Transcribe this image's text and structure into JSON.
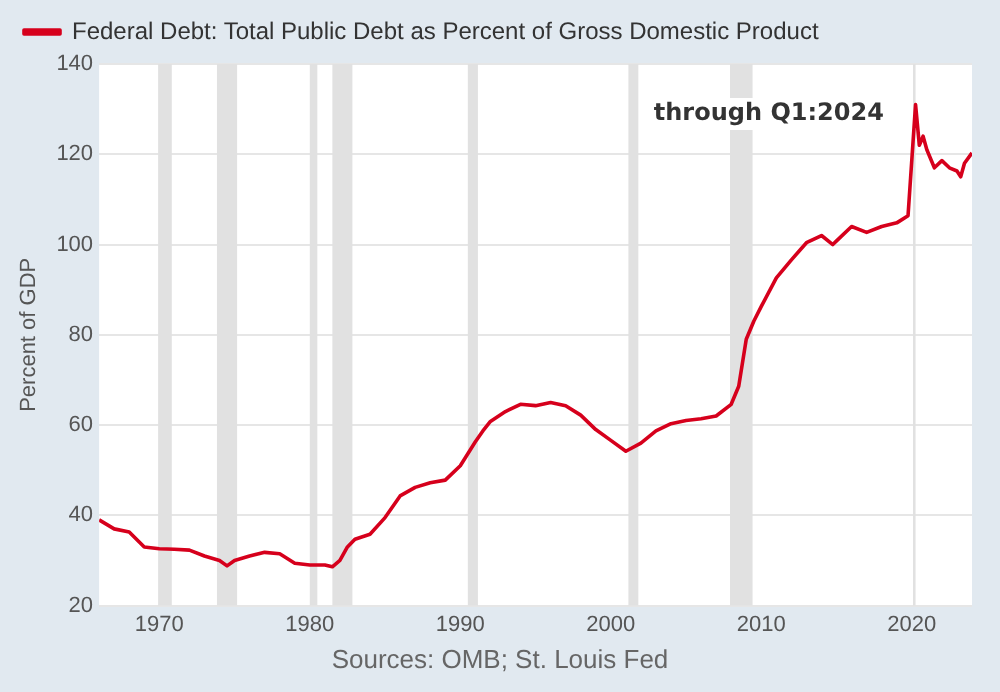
{
  "chart_data": {
    "type": "line",
    "ylabel": "Percent of GDP",
    "x": [
      1966,
      1967,
      1968,
      1969,
      1970,
      1971,
      1972,
      1973,
      1974,
      1974.5,
      1975,
      1976,
      1977,
      1978,
      1979,
      1980,
      1981,
      1981.5,
      1982,
      1982.5,
      1983,
      1984,
      1985,
      1986,
      1987,
      1988,
      1989,
      1990,
      1991,
      1991.5,
      1992,
      1993,
      1994,
      1995,
      1996,
      1997,
      1998,
      1999,
      2000,
      2001,
      2002,
      2003,
      2004,
      2005,
      2006,
      2007,
      2008,
      2008.5,
      2009,
      2009.5,
      2010,
      2011,
      2012,
      2013,
      2014,
      2014.75,
      2015,
      2016,
      2017,
      2018,
      2019,
      2019.75,
      2020.25,
      2020.5,
      2020.75,
      2021,
      2021.5,
      2022,
      2022.5,
      2023,
      2023.25,
      2023.5,
      2024
    ],
    "series": [
      {
        "name": "Federal Debt: Total Public Debt as Percent of Gross Domestic Product",
        "color": "#d6001c",
        "values": [
          39,
          37,
          36.3,
          33,
          32.6,
          32.5,
          32.3,
          31,
          30,
          28.8,
          30,
          31,
          31.8,
          31.5,
          29.4,
          29,
          29,
          28.6,
          30,
          33,
          34.7,
          35.8,
          39.5,
          44.3,
          46.2,
          47.2,
          47.8,
          51,
          56.3,
          58.7,
          60.8,
          63,
          64.6,
          64.3,
          65,
          64.3,
          62.2,
          59,
          56.6,
          54.2,
          56,
          58.7,
          60.3,
          61,
          61.4,
          62,
          64.6,
          68.6,
          79,
          83,
          86.3,
          92.6,
          96.6,
          100.4,
          102,
          100,
          100.8,
          104,
          102.7,
          104,
          104.8,
          106.4,
          131,
          122,
          124,
          121,
          117,
          118.6,
          117,
          116.3,
          115,
          118,
          120.3
        ]
      }
    ],
    "xlim": [
      1966,
      2024
    ],
    "xticks": [
      1970,
      1980,
      1990,
      2000,
      2010,
      2020
    ],
    "ylim": [
      20,
      140
    ],
    "yticks": [
      20,
      40,
      60,
      80,
      100,
      120,
      140
    ],
    "grid": "y",
    "legend": "top left",
    "marker": "none",
    "line_style": "solid",
    "bands": [
      {
        "axis": "x",
        "from": 1969.92,
        "to": 1970.83,
        "color": "#e1e1e1"
      },
      {
        "axis": "x",
        "from": 1973.83,
        "to": 1975.17,
        "color": "#e1e1e1"
      },
      {
        "axis": "x",
        "from": 1980.0,
        "to": 1980.5,
        "color": "#e1e1e1"
      },
      {
        "axis": "x",
        "from": 1981.5,
        "to": 1982.83,
        "color": "#e1e1e1"
      },
      {
        "axis": "x",
        "from": 1990.5,
        "to": 1991.17,
        "color": "#e1e1e1"
      },
      {
        "axis": "x",
        "from": 2001.17,
        "to": 2001.83,
        "color": "#e1e1e1"
      },
      {
        "axis": "x",
        "from": 2007.92,
        "to": 2009.42,
        "color": "#e1e1e1"
      },
      {
        "axis": "x",
        "from": 2020.08,
        "to": 2020.25,
        "color": "#e1e1e1"
      }
    ],
    "annotations": [
      "through Q1:2024",
      "Sources: OMB; St. Louis Fed"
    ]
  }
}
